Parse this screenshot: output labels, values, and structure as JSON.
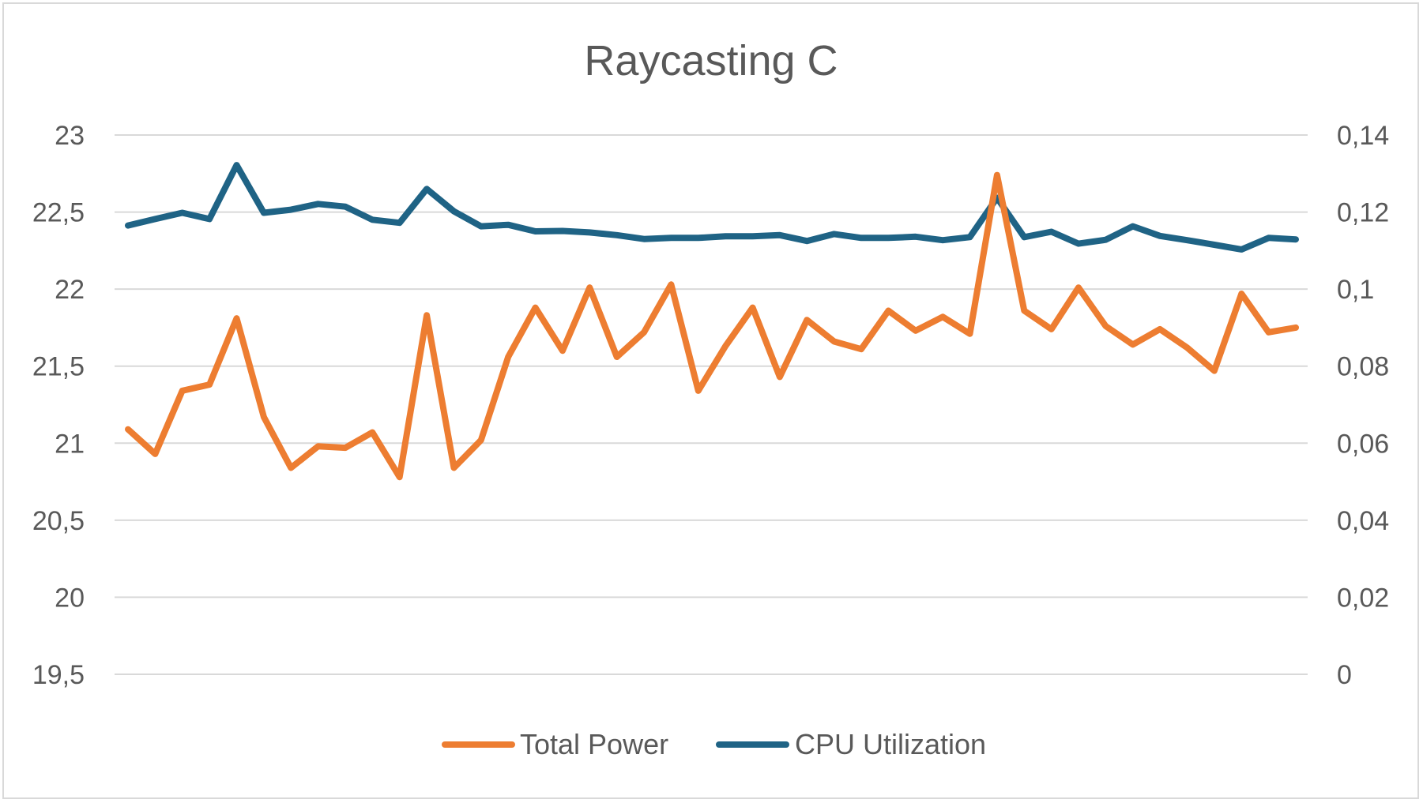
{
  "chart_data": {
    "type": "line",
    "title": "Raycasting C",
    "xlabel": "",
    "ylabel": "",
    "y_left": {
      "lim": [
        19.5,
        23
      ],
      "ticks": [
        "19,5",
        "20",
        "20,5",
        "21",
        "21,5",
        "22",
        "22,5",
        "23"
      ]
    },
    "y_right": {
      "lim": [
        0,
        0.14
      ],
      "ticks": [
        "0",
        "0,02",
        "0,04",
        "0,06",
        "0,08",
        "0,1",
        "0,12",
        "0,14"
      ]
    },
    "grid": true,
    "legend_position": "bottom",
    "series": [
      {
        "name": "Total Power",
        "axis": "left",
        "color": "#ed7d31",
        "values": [
          21.09,
          20.93,
          21.34,
          21.38,
          21.81,
          21.17,
          20.84,
          20.98,
          20.97,
          21.07,
          20.78,
          21.83,
          20.84,
          21.02,
          21.56,
          21.88,
          21.6,
          22.01,
          21.56,
          21.72,
          22.03,
          21.34,
          21.63,
          21.88,
          21.43,
          21.8,
          21.66,
          21.61,
          21.86,
          21.73,
          21.82,
          21.71,
          22.74,
          21.86,
          21.74,
          22.01,
          21.76,
          21.64,
          21.74,
          21.62,
          21.47,
          21.97,
          21.72,
          21.75
        ]
      },
      {
        "name": "CPU Utilization",
        "axis": "right",
        "color": "#1f6385",
        "values": [
          0.1165,
          0.1182,
          0.1198,
          0.1182,
          0.1322,
          0.1198,
          0.1206,
          0.1221,
          0.1214,
          0.118,
          0.1172,
          0.126,
          0.1202,
          0.1163,
          0.1167,
          0.115,
          0.1151,
          0.1147,
          0.114,
          0.113,
          0.1133,
          0.1133,
          0.1137,
          0.1137,
          0.114,
          0.1125,
          0.1143,
          0.1133,
          0.1133,
          0.1136,
          0.1127,
          0.1135,
          0.1237,
          0.1135,
          0.1149,
          0.1118,
          0.1128,
          0.1163,
          0.1138,
          0.1127,
          0.1115,
          0.1103,
          0.1133,
          0.1129
        ]
      }
    ]
  }
}
